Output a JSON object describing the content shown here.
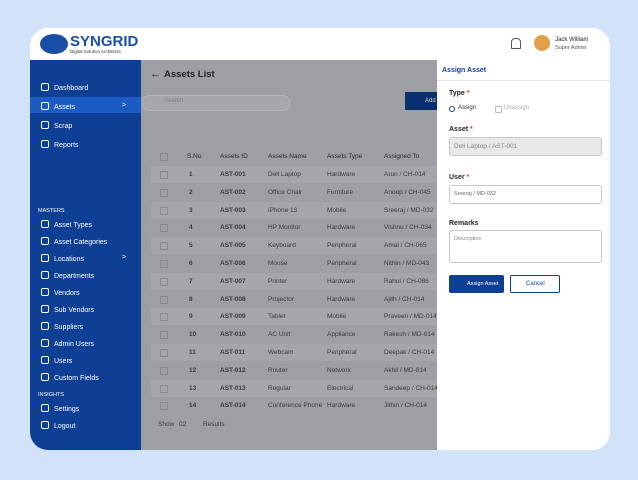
{
  "header": {
    "logo_title": "SYNGRID",
    "logo_subtitle": "Digital Solution Architects",
    "user_name": "Jack William",
    "user_role": "Super Admin"
  },
  "sidebar": {
    "main_items": [
      {
        "label": "Dashboard"
      },
      {
        "label": "Assets",
        "arrow": ">"
      },
      {
        "label": "Scrap"
      },
      {
        "label": "Reports"
      }
    ],
    "sections": [
      {
        "title": "MASTERS",
        "items": [
          {
            "label": "Asset Types"
          },
          {
            "label": "Asset Categories"
          },
          {
            "label": "Locations",
            "arrow": ">"
          },
          {
            "label": "Departments"
          },
          {
            "label": "Vendors"
          },
          {
            "label": "Sub Vendors"
          },
          {
            "label": "Suppliers"
          },
          {
            "label": "Admin Users"
          },
          {
            "label": "Users"
          },
          {
            "label": "Custom Fields"
          }
        ]
      },
      {
        "title": "INSIGHTS",
        "items": [
          {
            "label": "Settings"
          },
          {
            "label": "Logout"
          }
        ]
      }
    ]
  },
  "main": {
    "back_arrow": "←",
    "title": "Assets List",
    "search_placeholder": "Search",
    "add_button": "Add",
    "table": {
      "columns": [
        "S.No",
        "Assets ID",
        "Assets Name",
        "Assets Type",
        "Assigned To"
      ],
      "rows": [
        [
          "1",
          "AST-001",
          "Dell Laptop",
          "Hardware",
          "Arun / CH-014"
        ],
        [
          "2",
          "AST-002",
          "Office Chair",
          "Furniture",
          "Anoop / CH-045"
        ],
        [
          "3",
          "AST-003",
          "iPhone 13",
          "Mobile",
          "Sreeraj / MD-032"
        ],
        [
          "4",
          "AST-004",
          "HP Monitor",
          "Hardware",
          "Vishnu / CH-034"
        ],
        [
          "5",
          "AST-005",
          "Keyboard",
          "Peripheral",
          "Amal / CH-065"
        ],
        [
          "6",
          "AST-006",
          "Mouse",
          "Peripheral",
          "Nithin / MD-043"
        ],
        [
          "7",
          "AST-007",
          "Printer",
          "Hardware",
          "Rahul / CH-086"
        ],
        [
          "8",
          "AST-008",
          "Projector",
          "Hardware",
          "Ajith / CH-014"
        ],
        [
          "9",
          "AST-009",
          "Tablet",
          "Mobile",
          "Praveen / MD-014"
        ],
        [
          "10",
          "AST-010",
          "AC Unit",
          "Appliance",
          "Rakesh / MD-014"
        ],
        [
          "11",
          "AST-011",
          "Webcam",
          "Peripheral",
          "Deepak / CH-014"
        ],
        [
          "12",
          "AST-012",
          "Router",
          "Network",
          "Akhil / MD-014"
        ],
        [
          "13",
          "AST-013",
          "Regular",
          "Electrical",
          "Sandeep / CH-014"
        ],
        [
          "14",
          "AST-014",
          "Conference Phone",
          "Hardware",
          "Jithin / CH-014"
        ]
      ]
    },
    "footer": {
      "show": "Show",
      "count": "02",
      "results": "Results"
    }
  },
  "panel": {
    "title": "Assign Asset",
    "required": "*",
    "type_label": "Type",
    "radio_assign": "Assign",
    "radio_unassign": "Unassign",
    "asset_label": "Asset",
    "asset_value": "Dell Laptop / AST-001",
    "user_label": "User",
    "user_value": "Sreeraj / MD-032",
    "remarks_label": "Remarks",
    "remarks_placeholder": "Description",
    "assign_button": "Assign Asset",
    "cancel_button": "Cancel"
  }
}
